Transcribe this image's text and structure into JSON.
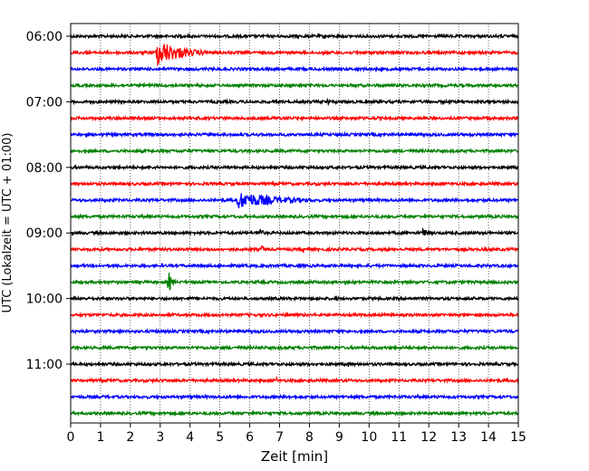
{
  "chart_data": {
    "type": "line",
    "title": "",
    "xlabel": "Zeit  [min]",
    "ylabel": "UTC (Lokalzeit = UTC + 01:00)",
    "xlim": [
      0,
      15
    ],
    "x_ticks": [
      "0",
      "1",
      "2",
      "3",
      "4",
      "5",
      "6",
      "7",
      "8",
      "9",
      "10",
      "11",
      "12",
      "13",
      "14",
      "15"
    ],
    "y_tick_labels": [
      "06:00",
      "07:00",
      "08:00",
      "09:00",
      "10:00",
      "11:00"
    ],
    "row_start_times": [
      "06:00",
      "06:15",
      "06:30",
      "06:45",
      "07:00",
      "07:15",
      "07:30",
      "07:45",
      "08:00",
      "08:15",
      "08:30",
      "08:45",
      "09:00",
      "09:15",
      "09:30",
      "09:45",
      "10:00",
      "10:15",
      "10:30",
      "10:45",
      "11:00",
      "11:15",
      "11:30",
      "11:45"
    ],
    "row_duration_minutes": 15,
    "color_cycle": [
      "#000000",
      "#ff0000",
      "#0000ff",
      "#008000"
    ],
    "grid": "vertical dotted lines at each minute",
    "events": [
      {
        "row": 1,
        "t_min": 2.9,
        "duration_min": 2.6,
        "relative_amplitude": 6.0
      },
      {
        "row": 10,
        "t_min": 5.6,
        "duration_min": 4.5,
        "relative_amplitude": 4.0
      },
      {
        "row": 15,
        "t_min": 3.3,
        "duration_min": 0.35,
        "relative_amplitude": 4.5
      },
      {
        "row": 12,
        "t_min": 6.35,
        "duration_min": 0.25,
        "relative_amplitude": 3.0
      },
      {
        "row": 12,
        "t_min": 11.85,
        "duration_min": 0.3,
        "relative_amplitude": 3.5
      },
      {
        "row": 13,
        "t_min": 6.4,
        "duration_min": 0.25,
        "relative_amplitude": 2.2
      },
      {
        "row": 13,
        "t_min": 7.8,
        "duration_min": 0.2,
        "relative_amplitude": 2.0
      },
      {
        "row": 4,
        "t_min": 8.6,
        "duration_min": 0.25,
        "relative_amplitude": 2.2
      },
      {
        "row": 20,
        "t_min": 9.3,
        "duration_min": 0.2,
        "relative_amplitude": 2.0
      },
      {
        "row": 0,
        "t_min": 8.5,
        "duration_min": 0.2,
        "relative_amplitude": 1.6
      },
      {
        "row": 1,
        "t_min": 9.6,
        "duration_min": 0.2,
        "relative_amplitude": 1.5
      },
      {
        "row": 16,
        "t_min": 8.9,
        "duration_min": 0.2,
        "relative_amplitude": 1.6
      },
      {
        "row": 22,
        "t_min": 7.3,
        "duration_min": 0.2,
        "relative_amplitude": 1.6
      },
      {
        "row": 21,
        "t_min": 6.9,
        "duration_min": 0.2,
        "relative_amplitude": 1.4
      }
    ]
  }
}
